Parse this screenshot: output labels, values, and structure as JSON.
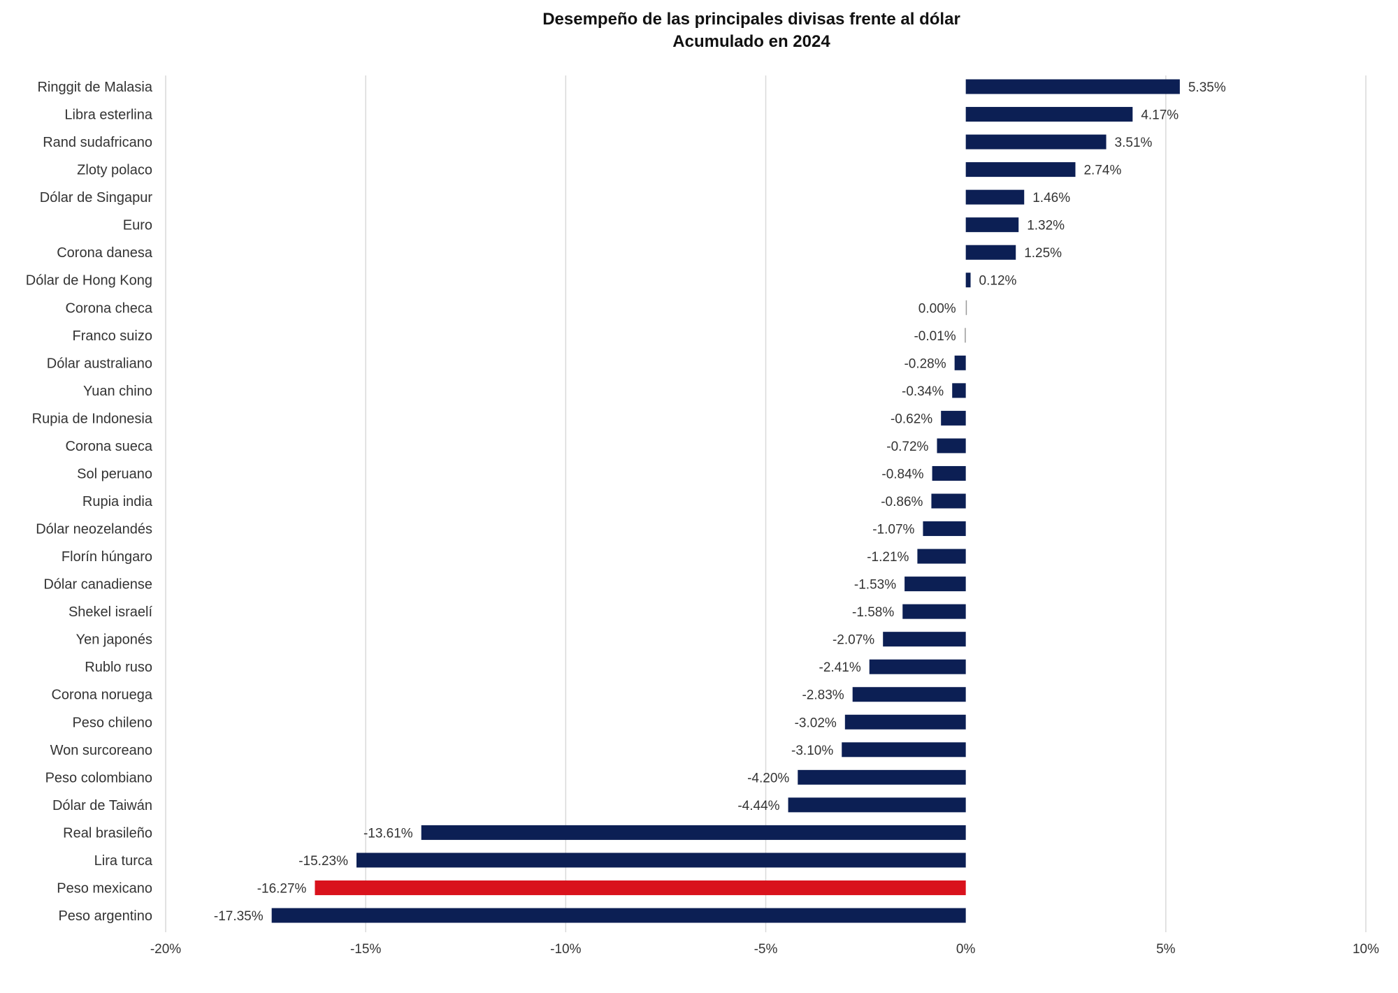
{
  "chart_data": {
    "type": "bar",
    "orientation": "horizontal",
    "title": "Desempeño de las principales divisas frente al dólar",
    "subtitle": "Acumulado en 2024",
    "xlabel": "",
    "ylabel": "",
    "xlim": [
      -20,
      10
    ],
    "x_ticks": [
      -20,
      -15,
      -10,
      -5,
      0,
      5,
      10
    ],
    "x_tick_labels": [
      "-20%",
      "-15%",
      "-10%",
      "-5%",
      "0%",
      "5%",
      "10%"
    ],
    "grid": "vertical",
    "legend": "none",
    "colors": {
      "default": "#0c1f54",
      "highlight": "#d9121c",
      "grid": "#d9d9d9",
      "text": "#333333"
    },
    "highlight_category": "Peso mexicano",
    "categories": [
      "Ringgit de Malasia",
      "Libra esterlina",
      "Rand sudafricano",
      "Zloty polaco",
      "Dólar de Singapur",
      "Euro",
      "Corona danesa",
      "Dólar de Hong Kong",
      "Corona checa",
      "Franco suizo",
      "Dólar australiano",
      "Yuan chino",
      "Rupia de Indonesia",
      "Corona sueca",
      "Sol peruano",
      "Rupia india",
      "Dólar neozelandés",
      "Florín húngaro",
      "Dólar canadiense",
      "Shekel israelí",
      "Yen japonés",
      "Rublo ruso",
      "Corona noruega",
      "Peso chileno",
      "Won surcoreano",
      "Peso colombiano",
      "Dólar de Taiwán",
      "Real brasileño",
      "Lira turca",
      "Peso mexicano",
      "Peso argentino"
    ],
    "values": [
      5.35,
      4.17,
      3.51,
      2.74,
      1.46,
      1.32,
      1.25,
      0.12,
      0.0,
      -0.01,
      -0.28,
      -0.34,
      -0.62,
      -0.72,
      -0.84,
      -0.86,
      -1.07,
      -1.21,
      -1.53,
      -1.58,
      -2.07,
      -2.41,
      -2.83,
      -3.02,
      -3.1,
      -4.2,
      -4.44,
      -13.61,
      -15.23,
      -16.27,
      -17.35
    ],
    "data_labels": [
      "5.35%",
      "4.17%",
      "3.51%",
      "2.74%",
      "1.46%",
      "1.32%",
      "1.25%",
      "0.12%",
      "0.00%",
      "-0.01%",
      "-0.28%",
      "-0.34%",
      "-0.62%",
      "-0.72%",
      "-0.84%",
      "-0.86%",
      "-1.07%",
      "-1.21%",
      "-1.53%",
      "-1.58%",
      "-2.07%",
      "-2.41%",
      "-2.83%",
      "-3.02%",
      "-3.10%",
      "-4.20%",
      "-4.44%",
      "-13.61%",
      "-15.23%",
      "-16.27%",
      "-17.35%"
    ]
  }
}
